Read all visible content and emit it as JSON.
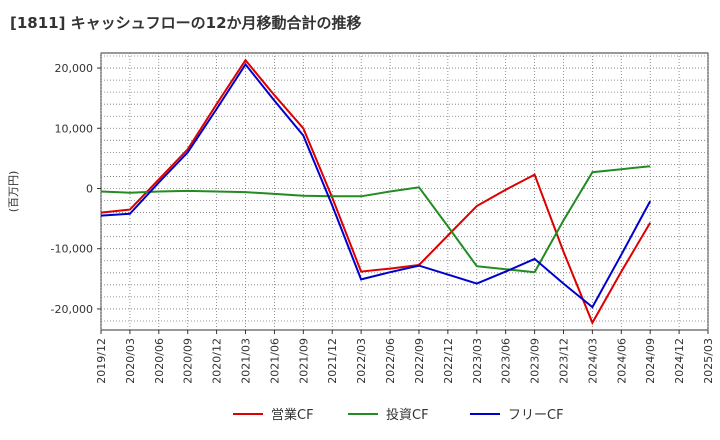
{
  "chart_data": {
    "type": "line",
    "title": "[1811]  キャッシュフローの12か月移動合計の推移",
    "ylabel": "(百万円)",
    "xlabel": "",
    "ylim": [
      -23500,
      22500
    ],
    "yticks": [
      20000,
      10000,
      0,
      -10000,
      -20000
    ],
    "ytick_labels": [
      "20,000",
      "10,000",
      "0",
      "-10,000",
      "-20,000"
    ],
    "categories": [
      "2019/12",
      "2020/03",
      "2020/06",
      "2020/09",
      "2020/12",
      "2021/03",
      "2021/06",
      "2021/09",
      "2021/12",
      "2022/03",
      "2022/06",
      "2022/09",
      "2022/12",
      "2023/03",
      "2023/06",
      "2023/09",
      "2023/12",
      "2024/03",
      "2024/06",
      "2024/09",
      "2024/12",
      "2025/03"
    ],
    "grid": true,
    "legend_position": "bottom",
    "series": [
      {
        "name": "営業CF",
        "color": "#dd0000",
        "values": [
          -4000,
          -3500,
          1500,
          6500,
          14000,
          21300,
          15500,
          10000,
          -1500,
          -13800,
          -13300,
          -12700,
          -7800,
          -2900,
          -200,
          2300,
          -10500,
          -22300,
          -13800,
          -5700,
          null,
          null
        ]
      },
      {
        "name": "投資CF",
        "color": "#228B22",
        "values": [
          -500,
          -700,
          -500,
          -400,
          -500,
          -600,
          -900,
          -1200,
          -1300,
          -1300,
          -500,
          200,
          -6300,
          -12900,
          -13400,
          -13900,
          -5300,
          2700,
          3200,
          3700,
          null,
          null
        ]
      },
      {
        "name": "フリーCF",
        "color": "#0000cc",
        "values": [
          -4500,
          -4200,
          1000,
          6000,
          13200,
          20600,
          14600,
          8800,
          -2800,
          -15100,
          -13900,
          -12800,
          -14300,
          -15800,
          -13800,
          -11700,
          -15800,
          -19700,
          -11000,
          -2100,
          null,
          null
        ]
      }
    ]
  }
}
